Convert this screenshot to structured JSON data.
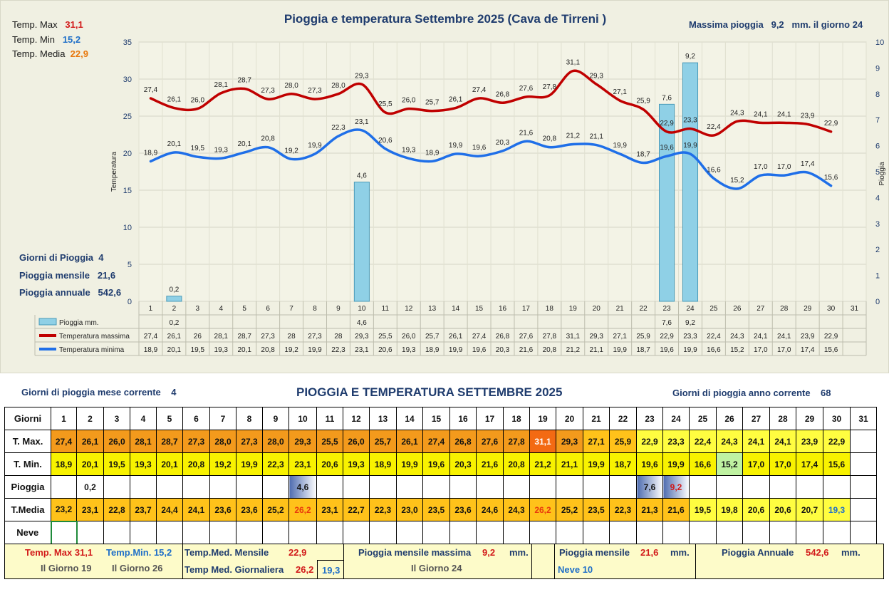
{
  "chart": {
    "title": "Pioggia e temperatura Settembre 2025 (Cava de Tirreni )",
    "max_rain_text": "Massima pioggia",
    "max_rain_value": "9,2",
    "max_rain_unit": "mm. il giorno 24",
    "stats": {
      "tmax_label": "Temp. Max",
      "tmax_value": "31,1",
      "tmin_label": "Temp. Min",
      "tmin_value": "15,2",
      "tmedia_label": "Temp. Media",
      "tmedia_value": "22,9"
    },
    "summary": {
      "giorni_label": "Giorni di Pioggia",
      "giorni_value": "4",
      "mensile_label": "Pioggia mensile",
      "mensile_value": "21,6",
      "annuale_label": "Pioggia annuale",
      "annuale_value": "542,6"
    },
    "left_axis_title": "Temperatura",
    "right_axis_title": "Pioggia",
    "legend": [
      "Pioggia mm.",
      "Temperatura massima",
      "Temperatura minima"
    ]
  },
  "chart_data": {
    "type": "line",
    "title": "Pioggia e temperatura Settembre 2025 (Cava de Tirreni )",
    "ylabel": "Temperatura",
    "y2label": "Pioggia",
    "ylim": [
      0,
      35
    ],
    "y2lim": [
      0,
      10
    ],
    "yticks": [
      0,
      5,
      10,
      15,
      20,
      25,
      30,
      35
    ],
    "y2ticks": [
      0,
      1,
      2,
      3,
      4,
      5,
      6,
      7,
      8,
      9,
      10
    ],
    "grid": true,
    "categories": [
      "1",
      "2",
      "3",
      "4",
      "5",
      "6",
      "7",
      "8",
      "9",
      "10",
      "11",
      "12",
      "13",
      "14",
      "15",
      "16",
      "17",
      "18",
      "19",
      "20",
      "21",
      "22",
      "23",
      "24",
      "25",
      "26",
      "27",
      "28",
      "29",
      "30",
      "31"
    ],
    "series": [
      {
        "name": "Pioggia mm.",
        "type": "bar",
        "axis": "right",
        "values": [
          null,
          0.2,
          null,
          null,
          null,
          null,
          null,
          null,
          null,
          4.6,
          null,
          null,
          null,
          null,
          null,
          null,
          null,
          null,
          null,
          null,
          null,
          null,
          7.6,
          9.2,
          null,
          null,
          null,
          null,
          null,
          null,
          null
        ],
        "table_labels": [
          "",
          "0,2",
          "",
          "",
          "",
          "",
          "",
          "",
          "",
          "4,6",
          "",
          "",
          "",
          "",
          "",
          "",
          "",
          "",
          "",
          "",
          "",
          "",
          "7,6",
          "9,2",
          "",
          "",
          "",
          "",
          "",
          "",
          ""
        ]
      },
      {
        "name": "Temperatura massima",
        "type": "line",
        "axis": "left",
        "color": "#c00000",
        "values": [
          27.4,
          26.1,
          26.0,
          28.1,
          28.7,
          27.3,
          28.0,
          27.3,
          28.0,
          29.3,
          25.5,
          26.0,
          25.7,
          26.1,
          27.4,
          26.8,
          27.6,
          27.8,
          31.1,
          29.3,
          27.1,
          25.9,
          22.9,
          23.3,
          22.4,
          24.3,
          24.1,
          24.1,
          23.9,
          22.9,
          null
        ],
        "labels": [
          "27,4",
          "26,1",
          "26,0",
          "28,1",
          "28,7",
          "27,3",
          "28,0",
          "27,3",
          "28,0",
          "29,3",
          "25,5",
          "26,0",
          "25,7",
          "26,1",
          "27,4",
          "26,8",
          "27,6",
          "27,8",
          "31,1",
          "29,3",
          "27,1",
          "25,9",
          "22,9",
          "23,3",
          "22,4",
          "24,3",
          "24,1",
          "24,1",
          "23,9",
          "22,9",
          ""
        ],
        "table_labels": [
          "27,4",
          "26,1",
          "26",
          "28,1",
          "28,7",
          "27,3",
          "28",
          "27,3",
          "28",
          "29,3",
          "25,5",
          "26,0",
          "25,7",
          "26,1",
          "27,4",
          "26,8",
          "27,6",
          "27,8",
          "31,1",
          "29,3",
          "27,1",
          "25,9",
          "22,9",
          "23,3",
          "22,4",
          "24,3",
          "24,1",
          "24,1",
          "23,9",
          "22,9",
          ""
        ]
      },
      {
        "name": "Temperatura minima",
        "type": "line",
        "axis": "left",
        "color": "#1f6fe8",
        "values": [
          18.9,
          20.1,
          19.5,
          19.3,
          20.1,
          20.8,
          19.2,
          19.9,
          22.3,
          23.1,
          20.6,
          19.3,
          18.9,
          19.9,
          19.6,
          20.3,
          21.6,
          20.8,
          21.2,
          21.1,
          19.9,
          18.7,
          19.6,
          19.9,
          16.6,
          15.2,
          17.0,
          17.0,
          17.4,
          15.6,
          null
        ],
        "labels": [
          "18,9",
          "20,1",
          "19,5",
          "19,3",
          "20,1",
          "20,8",
          "19,2",
          "19,9",
          "22,3",
          "23,1",
          "20,6",
          "19,3",
          "18,9",
          "19,9",
          "19,6",
          "20,3",
          "21,6",
          "20,8",
          "21,2",
          "21,1",
          "19,9",
          "18,7",
          "19,6",
          "19,9",
          "16,6",
          "15,2",
          "17,0",
          "17,0",
          "17,4",
          "15,6",
          ""
        ],
        "table_labels": [
          "18,9",
          "20,1",
          "19,5",
          "19,3",
          "20,1",
          "20,8",
          "19,2",
          "19,9",
          "22,3",
          "23,1",
          "20,6",
          "19,3",
          "18,9",
          "19,9",
          "19,6",
          "20,3",
          "21,6",
          "20,8",
          "21,2",
          "21,1",
          "19,9",
          "18,7",
          "19,6",
          "19,9",
          "16,6",
          "15,2",
          "17,0",
          "17,0",
          "17,4",
          "15,6",
          ""
        ]
      }
    ]
  },
  "table": {
    "title": "PIOGGIA E TEMPERATURA SETTEMBRE 2025",
    "rain_month_label": "Giorni di pioggia mese corrente",
    "rain_month_value": "4",
    "rain_year_label": "Giorni di pioggia anno corrente",
    "rain_year_value": "68",
    "row_labels": [
      "Giorni",
      "T. Max.",
      "T. Min.",
      "Pioggia",
      "T.Media",
      "Neve"
    ],
    "days": [
      "1",
      "2",
      "3",
      "4",
      "5",
      "6",
      "7",
      "8",
      "9",
      "10",
      "11",
      "12",
      "13",
      "14",
      "15",
      "16",
      "17",
      "18",
      "19",
      "20",
      "21",
      "22",
      "23",
      "24",
      "25",
      "26",
      "27",
      "28",
      "29",
      "30",
      "31"
    ],
    "tmax": [
      "27,4",
      "26,1",
      "26,0",
      "28,1",
      "28,7",
      "27,3",
      "28,0",
      "27,3",
      "28,0",
      "29,3",
      "25,5",
      "26,0",
      "25,7",
      "26,1",
      "27,4",
      "26,8",
      "27,6",
      "27,8",
      "31,1",
      "29,3",
      "27,1",
      "25,9",
      "22,9",
      "23,3",
      "22,4",
      "24,3",
      "24,1",
      "24,1",
      "23,9",
      "22,9",
      ""
    ],
    "tmin": [
      "18,9",
      "20,1",
      "19,5",
      "19,3",
      "20,1",
      "20,8",
      "19,2",
      "19,9",
      "22,3",
      "23,1",
      "20,6",
      "19,3",
      "18,9",
      "19,9",
      "19,6",
      "20,3",
      "21,6",
      "20,8",
      "21,2",
      "21,1",
      "19,9",
      "18,7",
      "19,6",
      "19,9",
      "16,6",
      "15,2",
      "17,0",
      "17,0",
      "17,4",
      "15,6",
      ""
    ],
    "pioggia": [
      "",
      "0,2",
      "",
      "",
      "",
      "",
      "",
      "",
      "",
      "4,6",
      "",
      "",
      "",
      "",
      "",
      "",
      "",
      "",
      "",
      "",
      "",
      "",
      "7,6",
      "9,2",
      "",
      "",
      "",
      "",
      "",
      "",
      ""
    ],
    "tmedia": [
      "23,2",
      "23,1",
      "22,8",
      "23,7",
      "24,4",
      "24,1",
      "23,6",
      "23,6",
      "25,2",
      "26,2",
      "23,1",
      "22,7",
      "22,3",
      "23,0",
      "23,5",
      "23,6",
      "24,6",
      "24,3",
      "26,2",
      "25,2",
      "23,5",
      "22,3",
      "21,3",
      "21,6",
      "19,5",
      "19,8",
      "20,6",
      "20,6",
      "20,7",
      "19,3",
      ""
    ],
    "neve": [
      "",
      "",
      "",
      "",
      "",
      "",
      "",
      "",
      "",
      "",
      "",
      "",
      "",
      "",
      "",
      "",
      "",
      "",
      "",
      "",
      "",
      "",
      "",
      "",
      "",
      "",
      "",
      "",
      "",
      "",
      ""
    ]
  },
  "bottom": {
    "tmax_label": "Temp. Max",
    "tmax_value": "31,1",
    "tmin_label": "Temp.Min.",
    "tmin_value": "15,2",
    "tmax_day": "Il Giorno 19",
    "tmin_day": "Il Giorno 26",
    "tmed_mensile_label": "Temp.Med. Mensile",
    "tmed_mensile_value": "22,9",
    "tmed_giorn_label": "Temp Med. Giornaliera",
    "tmed_giorn_max": "26,2",
    "tmed_giorn_min": "19,3",
    "pioggia_max_label": "Pioggia mensile massima",
    "pioggia_max_value": "9,2",
    "pioggia_max_unit": "mm.",
    "pioggia_max_day": "Il Giorno 24",
    "pioggia_mensile_label": "Pioggia mensile",
    "pioggia_mensile_value": "21,6",
    "pioggia_mensile_unit": "mm.",
    "neve_label": "Neve 10",
    "pioggia_annuale_label": "Pioggia Annuale",
    "pioggia_annuale_value": "542,6",
    "pioggia_annuale_unit": "mm."
  },
  "colors": {
    "panel_bg": "#f0f0e2",
    "title_blue": "#1f3c6e",
    "max_red": "#c00000",
    "min_blue": "#1f6fe8",
    "bar_blue": "#8fd0e6"
  }
}
